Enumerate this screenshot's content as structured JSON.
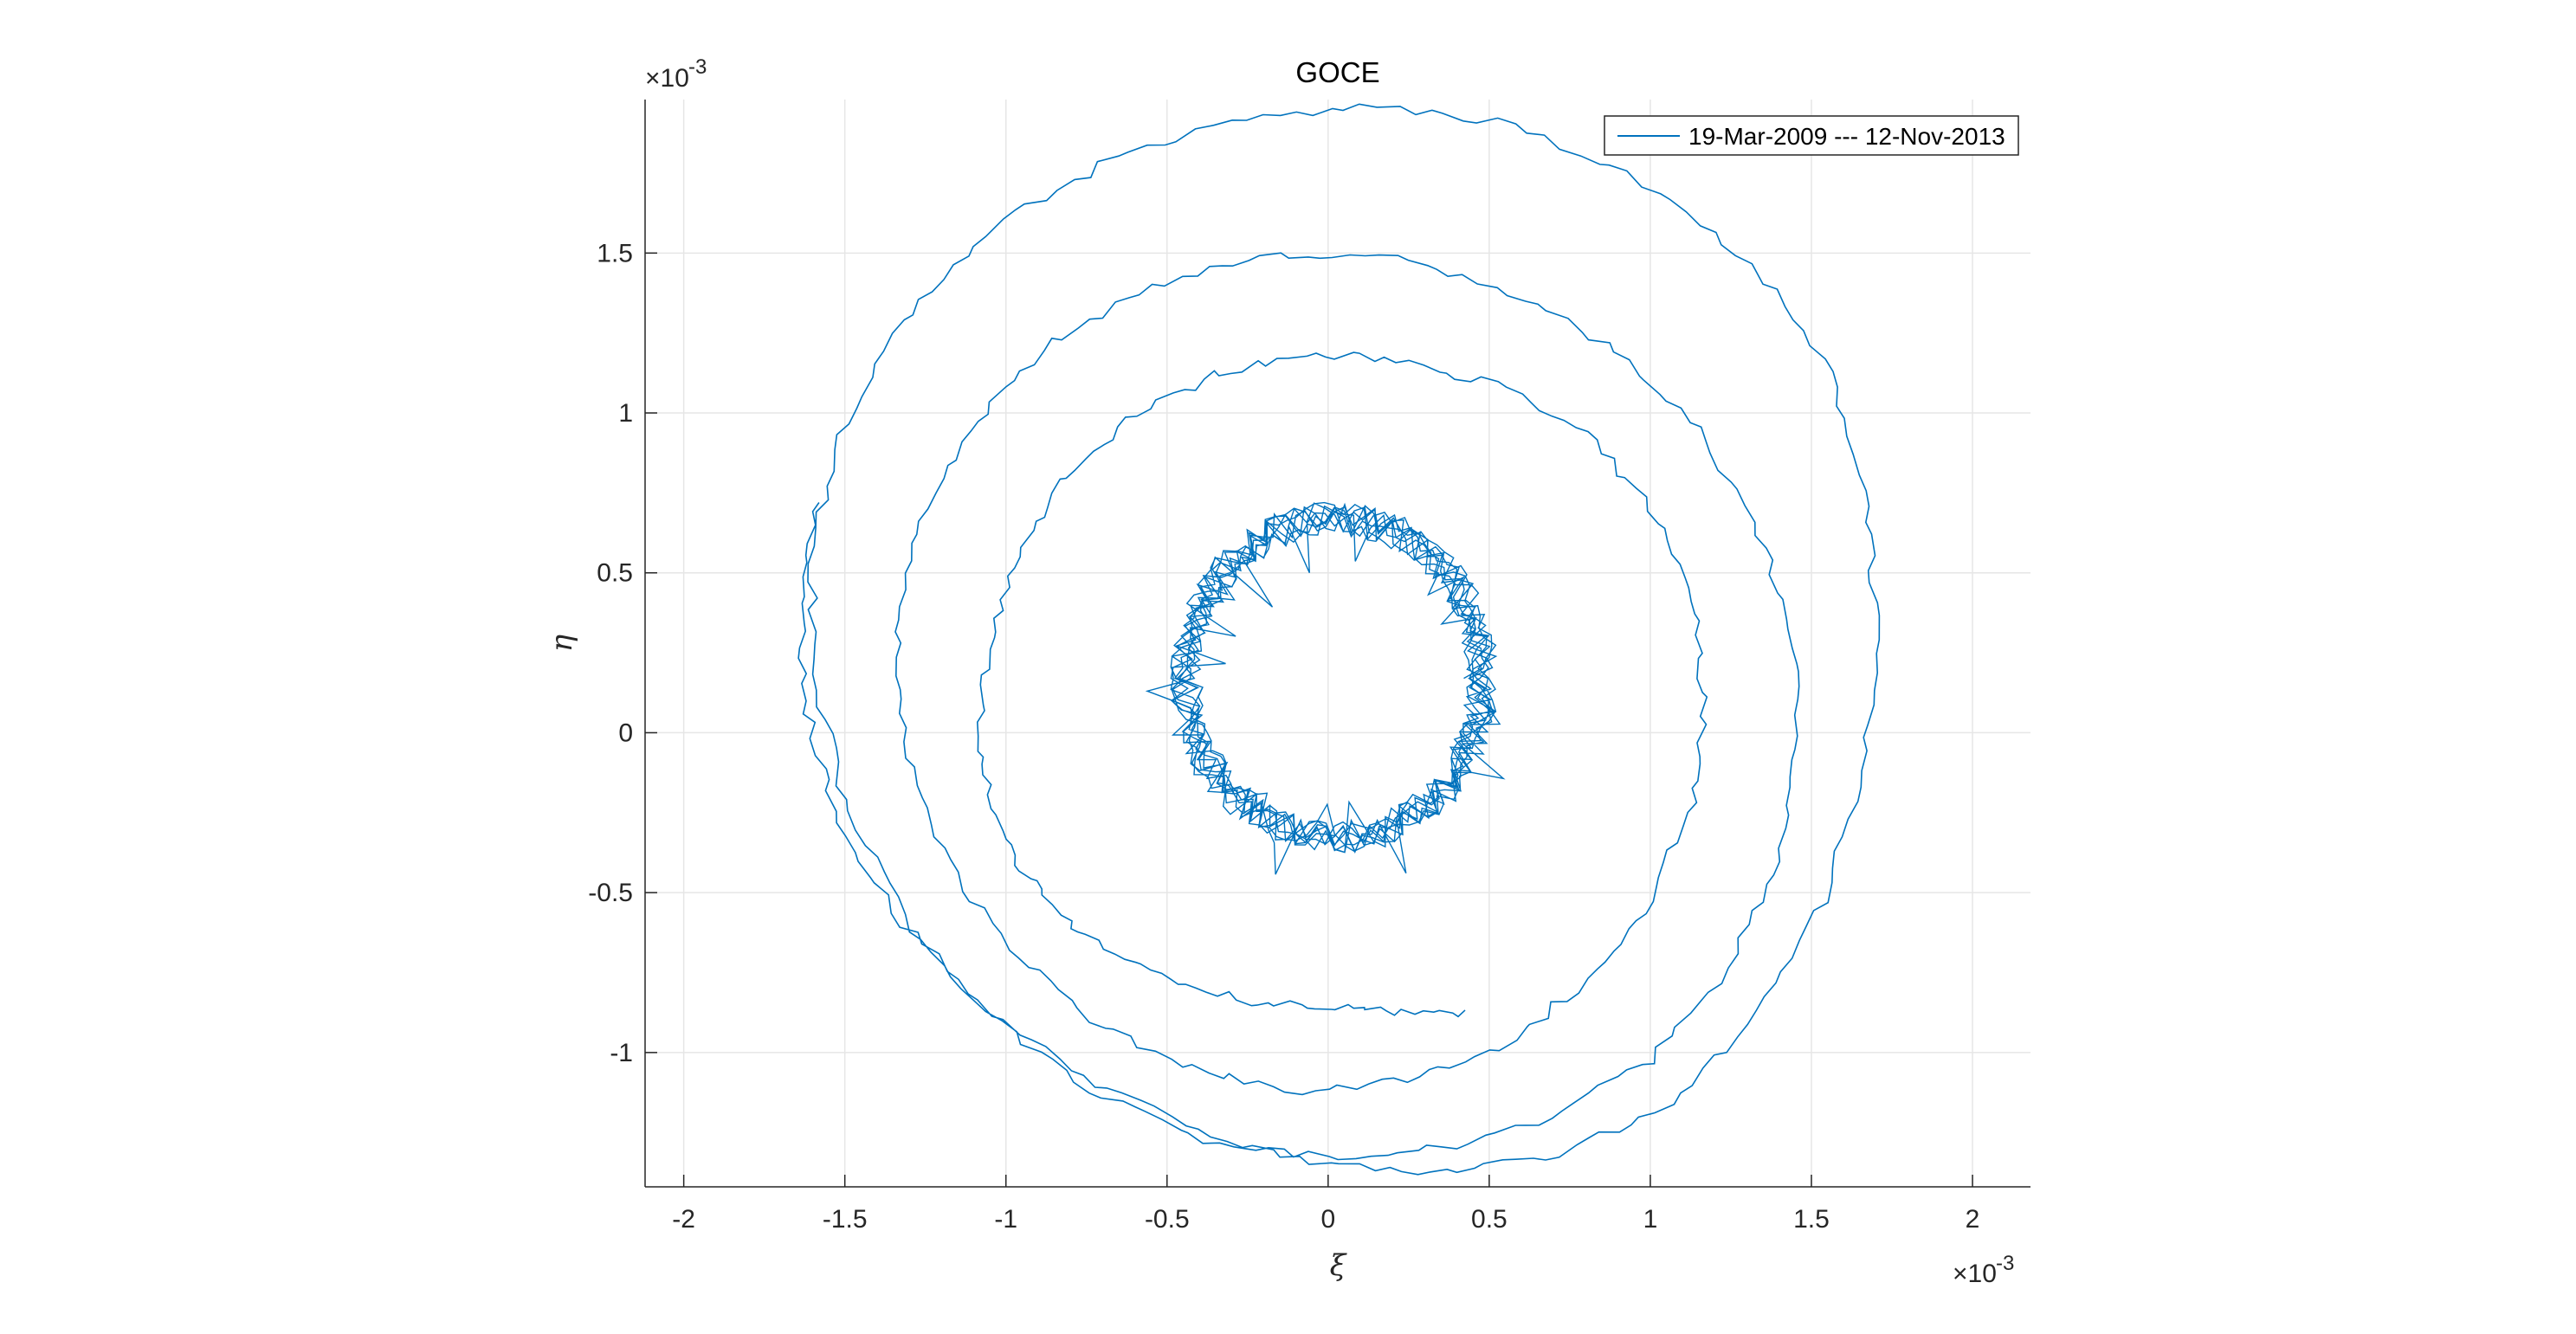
{
  "chart_data": {
    "type": "line",
    "title": "GOCE",
    "xlabel": "ξ",
    "ylabel": "η",
    "x_exponent_label": "×10",
    "x_exponent_power": "-3",
    "y_exponent_label": "×10",
    "y_exponent_power": "-3",
    "xlim": [
      -2.12,
      2.18
    ],
    "ylim": [
      -1.42,
      1.98
    ],
    "x_ticks": [
      -2,
      -1.5,
      -1,
      -0.5,
      0,
      0.5,
      1,
      1.5,
      2
    ],
    "x_tick_labels": [
      "-2",
      "-1.5",
      "-1",
      "-0.5",
      "0",
      "0.5",
      "1",
      "1.5",
      "2"
    ],
    "y_ticks": [
      -1,
      -0.5,
      0,
      0.5,
      1,
      1.5
    ],
    "y_tick_labels": [
      "-1",
      "-0.5",
      "0",
      "0.5",
      "1",
      "1.5"
    ],
    "grid": true,
    "legend_position": "top-right",
    "series": [
      {
        "name": "19-Mar-2009 --- 12-Nov-2013",
        "color": "#0072BD",
        "points": [
          [
            0.44,
            -0.88
          ],
          [
            0.2,
            -0.87
          ],
          [
            0.0,
            -0.86
          ],
          [
            -0.25,
            -0.84
          ],
          [
            -0.5,
            -0.77
          ],
          [
            -0.72,
            -0.66
          ],
          [
            -0.9,
            -0.5
          ],
          [
            -1.02,
            -0.3
          ],
          [
            -1.08,
            -0.05
          ],
          [
            -1.06,
            0.25
          ],
          [
            -0.98,
            0.52
          ],
          [
            -0.84,
            0.78
          ],
          [
            -0.62,
            0.98
          ],
          [
            -0.36,
            1.12
          ],
          [
            -0.08,
            1.18
          ],
          [
            0.22,
            1.17
          ],
          [
            0.52,
            1.09
          ],
          [
            0.8,
            0.93
          ],
          [
            1.0,
            0.7
          ],
          [
            1.13,
            0.42
          ],
          [
            1.17,
            0.1
          ],
          [
            1.13,
            -0.22
          ],
          [
            1.0,
            -0.52
          ],
          [
            0.8,
            -0.78
          ],
          [
            0.54,
            -0.98
          ],
          [
            0.24,
            -1.09
          ],
          [
            -0.08,
            -1.12
          ],
          [
            -0.42,
            -1.05
          ],
          [
            -0.74,
            -0.9
          ],
          [
            -1.0,
            -0.67
          ],
          [
            -1.2,
            -0.37
          ],
          [
            -1.32,
            -0.03
          ],
          [
            -1.34,
            0.32
          ],
          [
            -1.26,
            0.67
          ],
          [
            -1.1,
            0.98
          ],
          [
            -0.86,
            1.22
          ],
          [
            -0.55,
            1.4
          ],
          [
            -0.2,
            1.49
          ],
          [
            0.16,
            1.49
          ],
          [
            0.52,
            1.4
          ],
          [
            0.86,
            1.22
          ],
          [
            1.12,
            0.98
          ],
          [
            1.32,
            0.67
          ],
          [
            1.44,
            0.32
          ],
          [
            1.46,
            -0.04
          ],
          [
            1.4,
            -0.4
          ],
          [
            1.24,
            -0.74
          ],
          [
            1.0,
            -1.02
          ],
          [
            0.7,
            -1.2
          ],
          [
            0.36,
            -1.3
          ],
          [
            0.0,
            -1.33
          ],
          [
            -0.38,
            -1.27
          ],
          [
            -0.74,
            -1.12
          ],
          [
            -1.06,
            -0.88
          ],
          [
            -1.32,
            -0.57
          ],
          [
            -1.5,
            -0.2
          ],
          [
            -1.6,
            0.18
          ],
          [
            -1.6,
            0.58
          ],
          [
            -1.5,
            0.98
          ],
          [
            -1.3,
            1.32
          ],
          [
            -1.02,
            1.6
          ],
          [
            -0.66,
            1.8
          ],
          [
            -0.26,
            1.92
          ],
          [
            0.16,
            1.96
          ],
          [
            0.58,
            1.9
          ],
          [
            0.98,
            1.72
          ],
          [
            1.32,
            1.46
          ],
          [
            1.56,
            1.12
          ],
          [
            1.68,
            0.72
          ],
          [
            1.7,
            0.3
          ],
          [
            1.66,
            -0.12
          ],
          [
            1.54,
            -0.52
          ],
          [
            1.34,
            -0.88
          ],
          [
            1.06,
            -1.16
          ],
          [
            0.72,
            -1.32
          ],
          [
            0.36,
            -1.38
          ],
          [
            0.0,
            -1.35
          ],
          [
            -0.36,
            -1.26
          ],
          [
            -0.72,
            -1.1
          ],
          [
            -1.05,
            -0.88
          ],
          [
            -1.32,
            -0.6
          ],
          [
            -1.52,
            -0.28
          ],
          [
            -1.62,
            0.06
          ],
          [
            -1.64,
            0.4
          ],
          [
            -1.58,
            0.72
          ]
        ],
        "noisy_ring": {
          "center": [
            0.02,
            0.17
          ],
          "radius_x": 0.46,
          "radius_y": 0.5
        }
      }
    ]
  }
}
